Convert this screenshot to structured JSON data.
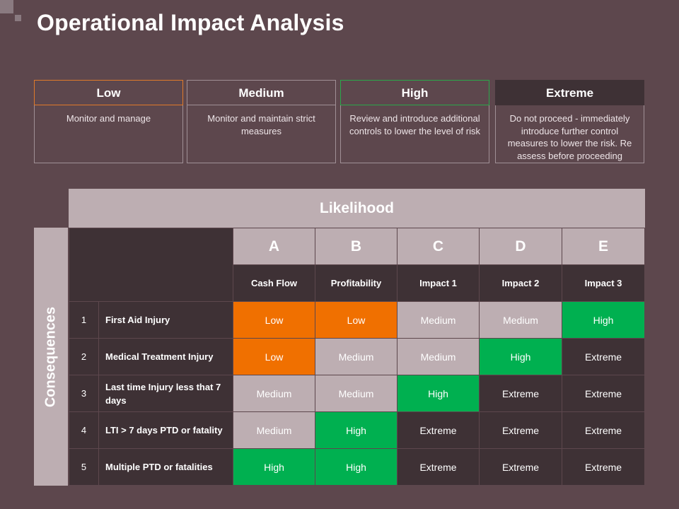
{
  "page": {
    "title": "Operational Impact Analysis"
  },
  "legend": [
    {
      "label": "Low",
      "description": "Monitor and manage",
      "accent": "#e07a2a"
    },
    {
      "label": "Medium",
      "description": "Monitor and maintain strict measures",
      "accent": "#a09096"
    },
    {
      "label": "High",
      "description": "Review and introduce additional controls to lower the level of risk",
      "accent": "#2aa84a"
    },
    {
      "label": "Extreme",
      "description": "Do not proceed - immediately introduce further control measures to lower the risk. Re assess before proceeding",
      "accent": "#3e3135"
    }
  ],
  "matrix": {
    "likelihood_title": "Likelihood",
    "consequences_title": "Consequences",
    "columns": [
      {
        "letter": "A",
        "label": "Cash Flow"
      },
      {
        "letter": "B",
        "label": "Profitability"
      },
      {
        "letter": "C",
        "label": "Impact 1"
      },
      {
        "letter": "D",
        "label": "Impact 2"
      },
      {
        "letter": "E",
        "label": "Impact 3"
      }
    ],
    "rows": [
      {
        "num": "1",
        "label": "First Aid Injury",
        "cells": [
          "Low",
          "Low",
          "Medium",
          "Medium",
          "High"
        ]
      },
      {
        "num": "2",
        "label": "Medical Treatment Injury",
        "cells": [
          "Low",
          "Medium",
          "Medium",
          "High",
          "Extreme"
        ]
      },
      {
        "num": "3",
        "label": "Last time Injury less that 7 days",
        "cells": [
          "Medium",
          "Medium",
          "High",
          "Extreme",
          "Extreme"
        ]
      },
      {
        "num": "4",
        "label": "LTI > 7 days PTD or fatality",
        "cells": [
          "Medium",
          "High",
          "Extreme",
          "Extreme",
          "Extreme"
        ]
      },
      {
        "num": "5",
        "label": "Multiple PTD or fatalities",
        "cells": [
          "High",
          "High",
          "Extreme",
          "Extreme",
          "Extreme"
        ]
      }
    ]
  },
  "colors": {
    "background": "#5d474d",
    "low": "#f07000",
    "medium": "#bdaeb2",
    "high": "#00b050",
    "extreme": "#3e3135"
  }
}
